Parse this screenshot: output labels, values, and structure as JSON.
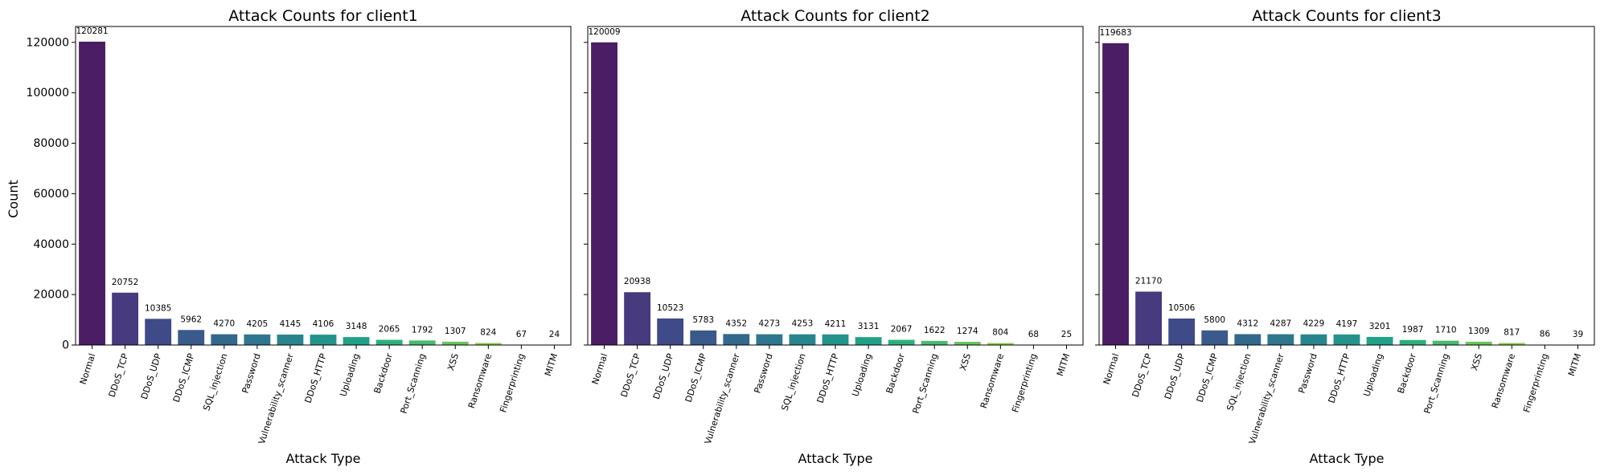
{
  "figure": {
    "ylabel": "Count"
  },
  "chart_data": [
    {
      "type": "bar",
      "title": "Attack Counts for client1",
      "xlabel": "Attack Type",
      "ylabel": "Count",
      "ylim": [
        0,
        126300
      ],
      "yticks": [
        0,
        20000,
        40000,
        60000,
        80000,
        100000,
        120000
      ],
      "ytick_labels": [
        "0",
        "20000",
        "40000",
        "60000",
        "80000",
        "100000",
        "120000"
      ],
      "categories": [
        "Normal",
        "DDoS_TCP",
        "DDoS_UDP",
        "DDoS_ICMP",
        "SQL_injection",
        "Password",
        "Vulnerability_scanner",
        "DDoS_HTTP",
        "Uploading",
        "Backdoor",
        "Port_Scanning",
        "XSS",
        "Ransomware",
        "Fingerprinting",
        "MITM"
      ],
      "values": [
        120281,
        20752,
        10385,
        5962,
        4270,
        4205,
        4145,
        4106,
        3148,
        2065,
        1792,
        1307,
        824,
        67,
        24
      ],
      "colors": [
        "#4a1d64",
        "#473a7e",
        "#3f4a89",
        "#3a5a8c",
        "#33688d",
        "#2e778e",
        "#29858d",
        "#23938b",
        "#21a185",
        "#2cb07b",
        "#45bc6e",
        "#63c75c",
        "#89d148",
        "#b0da33",
        "#d8e22a"
      ],
      "grid": false
    },
    {
      "type": "bar",
      "title": "Attack Counts for client2",
      "xlabel": "Attack Type",
      "ylim": [
        0,
        126300
      ],
      "categories": [
        "Normal",
        "DDoS_TCP",
        "DDoS_UDP",
        "DDoS_ICMP",
        "Vulnerability_scanner",
        "Password",
        "SQL_injection",
        "DDoS_HTTP",
        "Uploading",
        "Backdoor",
        "Port_Scanning",
        "XSS",
        "Ransomware",
        "Fingerprinting",
        "MITM"
      ],
      "values": [
        120009,
        20938,
        10523,
        5783,
        4352,
        4273,
        4253,
        4211,
        3131,
        2067,
        1622,
        1274,
        804,
        68,
        25
      ],
      "colors": [
        "#4a1d64",
        "#473a7e",
        "#3f4a89",
        "#3a5a8c",
        "#33688d",
        "#2e778e",
        "#29858d",
        "#23938b",
        "#21a185",
        "#2cb07b",
        "#45bc6e",
        "#63c75c",
        "#89d148",
        "#b0da33",
        "#d8e22a"
      ],
      "grid": false
    },
    {
      "type": "bar",
      "title": "Attack Counts for client3",
      "xlabel": "Attack Type",
      "ylim": [
        0,
        126300
      ],
      "categories": [
        "Normal",
        "DDoS_TCP",
        "DDoS_UDP",
        "DDoS_ICMP",
        "SQL_injection",
        "Vulnerability_scanner",
        "Password",
        "DDoS_HTTP",
        "Uploading",
        "Backdoor",
        "Port_Scanning",
        "XSS",
        "Ransomware",
        "Fingerprinting",
        "MITM"
      ],
      "values": [
        119683,
        21170,
        10506,
        5800,
        4312,
        4287,
        4229,
        4197,
        3201,
        1987,
        1710,
        1309,
        817,
        86,
        39
      ],
      "colors": [
        "#4a1d64",
        "#473a7e",
        "#3f4a89",
        "#3a5a8c",
        "#33688d",
        "#2e778e",
        "#29858d",
        "#23938b",
        "#21a185",
        "#2cb07b",
        "#45bc6e",
        "#63c75c",
        "#89d148",
        "#b0da33",
        "#d8e22a"
      ],
      "grid": false
    }
  ]
}
